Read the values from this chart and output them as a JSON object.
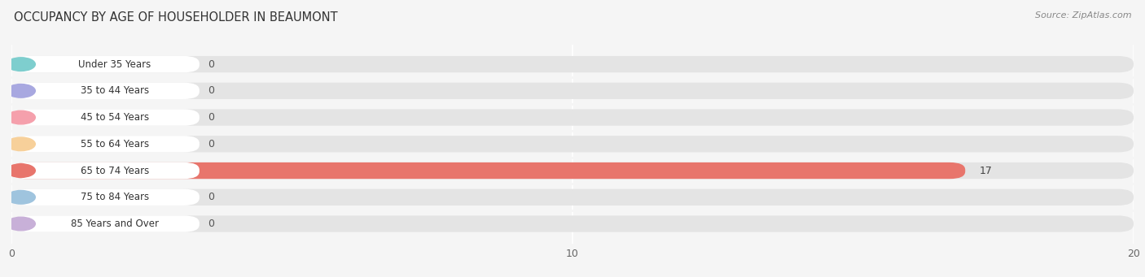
{
  "title": "OCCUPANCY BY AGE OF HOUSEHOLDER IN BEAUMONT",
  "source": "Source: ZipAtlas.com",
  "categories": [
    "Under 35 Years",
    "35 to 44 Years",
    "45 to 54 Years",
    "55 to 64 Years",
    "65 to 74 Years",
    "75 to 84 Years",
    "85 Years and Over"
  ],
  "values": [
    0,
    0,
    0,
    0,
    17,
    0,
    0
  ],
  "bar_colors": [
    "#7ecece",
    "#a8a8e0",
    "#f5a0ac",
    "#f7d09a",
    "#e8756c",
    "#9fc4de",
    "#c8b0d8"
  ],
  "xlim": [
    0,
    20
  ],
  "xticks": [
    0,
    10,
    20
  ],
  "background_color": "#f5f5f5",
  "bar_background_color": "#e4e4e4",
  "row_bg_color": "#ffffff",
  "title_fontsize": 10.5,
  "source_fontsize": 8,
  "tick_fontsize": 9,
  "label_fontsize": 8.5,
  "value_fontsize": 9
}
